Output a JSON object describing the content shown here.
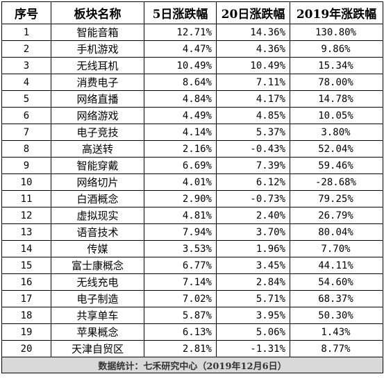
{
  "header": {
    "col_index": "序号",
    "col_sector": "板块名称",
    "col_5d": "5日涨跌幅",
    "col_20d": "20日涨跌幅",
    "col_2019": "2019年涨跌幅"
  },
  "rows": [
    {
      "index": "1",
      "sector": "智能音箱",
      "d5": "12.71%",
      "d20": "14.36%",
      "y2019": "130.80%"
    },
    {
      "index": "2",
      "sector": "手机游戏",
      "d5": "4.47%",
      "d20": "4.36%",
      "y2019": "9.86%"
    },
    {
      "index": "3",
      "sector": "无线耳机",
      "d5": "10.49%",
      "d20": "10.49%",
      "y2019": "15.34%"
    },
    {
      "index": "4",
      "sector": "消费电子",
      "d5": "8.64%",
      "d20": "7.11%",
      "y2019": "78.00%"
    },
    {
      "index": "5",
      "sector": "网络直播",
      "d5": "4.84%",
      "d20": "4.17%",
      "y2019": "14.78%"
    },
    {
      "index": "6",
      "sector": "网络游戏",
      "d5": "4.49%",
      "d20": "4.85%",
      "y2019": "10.05%"
    },
    {
      "index": "7",
      "sector": "电子竞技",
      "d5": "4.14%",
      "d20": "5.37%",
      "y2019": "3.80%"
    },
    {
      "index": "8",
      "sector": "高送转",
      "d5": "2.16%",
      "d20": "-0.43%",
      "y2019": "52.04%"
    },
    {
      "index": "9",
      "sector": "智能穿戴",
      "d5": "6.69%",
      "d20": "7.39%",
      "y2019": "59.46%"
    },
    {
      "index": "10",
      "sector": "网络切片",
      "d5": "4.01%",
      "d20": "6.12%",
      "y2019": "-28.68%"
    },
    {
      "index": "11",
      "sector": "白酒概念",
      "d5": "2.90%",
      "d20": "-0.73%",
      "y2019": "79.25%"
    },
    {
      "index": "12",
      "sector": "虚拟现实",
      "d5": "4.81%",
      "d20": "2.40%",
      "y2019": "26.79%"
    },
    {
      "index": "13",
      "sector": "语音技术",
      "d5": "7.94%",
      "d20": "3.70%",
      "y2019": "80.04%"
    },
    {
      "index": "14",
      "sector": "传媒",
      "d5": "3.53%",
      "d20": "1.96%",
      "y2019": "7.70%"
    },
    {
      "index": "15",
      "sector": "富士康概念",
      "d5": "6.77%",
      "d20": "3.45%",
      "y2019": "44.11%"
    },
    {
      "index": "16",
      "sector": "无线充电",
      "d5": "7.14%",
      "d20": "2.84%",
      "y2019": "54.60%"
    },
    {
      "index": "17",
      "sector": "电子制造",
      "d5": "7.02%",
      "d20": "5.71%",
      "y2019": "68.37%"
    },
    {
      "index": "18",
      "sector": "共享单车",
      "d5": "5.87%",
      "d20": "3.95%",
      "y2019": "50.30%"
    },
    {
      "index": "19",
      "sector": "苹果概念",
      "d5": "6.13%",
      "d20": "5.06%",
      "y2019": "1.43%"
    },
    {
      "index": "20",
      "sector": "天津自贸区",
      "d5": "2.81%",
      "d20": "-1.31%",
      "y2019": "8.77%"
    }
  ],
  "footer": {
    "source": "数据统计：七禾研究中心（2019年12月6日）"
  },
  "colors": {
    "border": "#000000",
    "footer_bg": "#d9d9d9"
  }
}
